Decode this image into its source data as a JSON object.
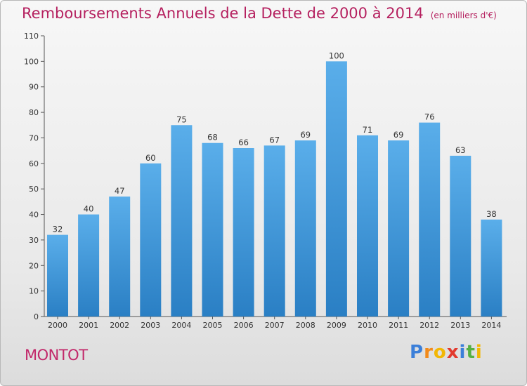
{
  "chart_data": {
    "type": "bar",
    "title": "Remboursements Annuels de la Dette de 2000 à 2014",
    "subtitle": "(en milliers d'€)",
    "categories": [
      "2000",
      "2001",
      "2002",
      "2003",
      "2004",
      "2005",
      "2006",
      "2007",
      "2008",
      "2009",
      "2010",
      "2011",
      "2012",
      "2013",
      "2014"
    ],
    "values": [
      32,
      40,
      47,
      60,
      75,
      68,
      66,
      67,
      69,
      100,
      71,
      69,
      76,
      63,
      38
    ],
    "ylim": [
      0,
      110
    ],
    "yticks": [
      0,
      10,
      20,
      30,
      40,
      50,
      60,
      70,
      80,
      90,
      100,
      110
    ],
    "xlabel": "",
    "ylabel": "",
    "grid": false,
    "bar_color_top": "#5aaeea",
    "bar_color_bottom": "#2a7fc4"
  },
  "footer": {
    "town": "MONTOT",
    "logo_letters": [
      "P",
      "r",
      "o",
      "x",
      "i",
      "t",
      "i"
    ],
    "logo_colors": [
      "#3b7fd9",
      "#f28a1a",
      "#f2b705",
      "#e23a2e",
      "#3b7fd9",
      "#55b043",
      "#f2b705"
    ]
  }
}
